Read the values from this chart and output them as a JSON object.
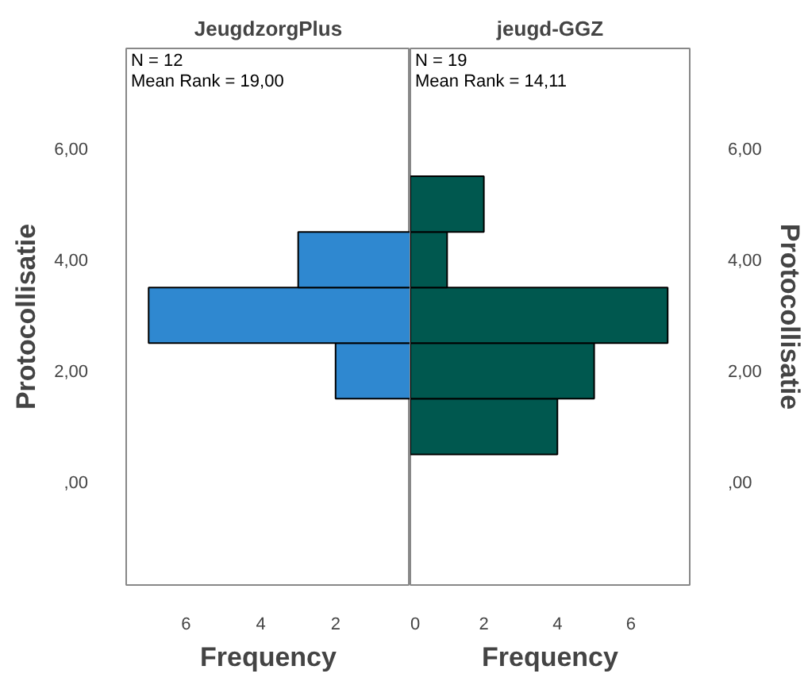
{
  "chart_data": [
    {
      "type": "histogram",
      "orientation": "horizontal",
      "title": "JeugdzorgPlus",
      "xlabel": "Frequency",
      "ylabel": "Protocollisatie",
      "annotations": [
        "N = 12",
        "Mean Rank = 19,00"
      ],
      "bins": [
        1.5,
        2.5,
        3.5,
        4.5
      ],
      "values": [
        2,
        7,
        3
      ],
      "color": "#2f88d0",
      "xlim": [
        7.6,
        0
      ],
      "xticks": [
        6,
        4,
        2
      ],
      "ylim": [
        -1.85,
        7.8
      ],
      "yticks": [
        {
          "value": 0,
          "label": ",00"
        },
        {
          "value": 2,
          "label": "2,00"
        },
        {
          "value": 4,
          "label": "4,00"
        },
        {
          "value": 6,
          "label": "6,00"
        }
      ],
      "grid": false
    },
    {
      "type": "histogram",
      "orientation": "horizontal",
      "title": "jeugd-GGZ",
      "xlabel": "Frequency",
      "ylabel": "Protocollisatie",
      "annotations": [
        "N = 19",
        "Mean Rank = 14,11"
      ],
      "bins": [
        0.5,
        1.5,
        2.5,
        3.5,
        4.5,
        5.5
      ],
      "values": [
        4,
        5,
        7,
        1,
        2
      ],
      "color": "#00584f",
      "xlim": [
        0,
        7.6
      ],
      "xticks": [
        0,
        2,
        4,
        6
      ],
      "ylim": [
        -1.85,
        7.8
      ],
      "yticks": [
        {
          "value": 0,
          "label": ",00"
        },
        {
          "value": 2,
          "label": "2,00"
        },
        {
          "value": 4,
          "label": "4,00"
        },
        {
          "value": 6,
          "label": "6,00"
        }
      ],
      "grid": false
    }
  ]
}
